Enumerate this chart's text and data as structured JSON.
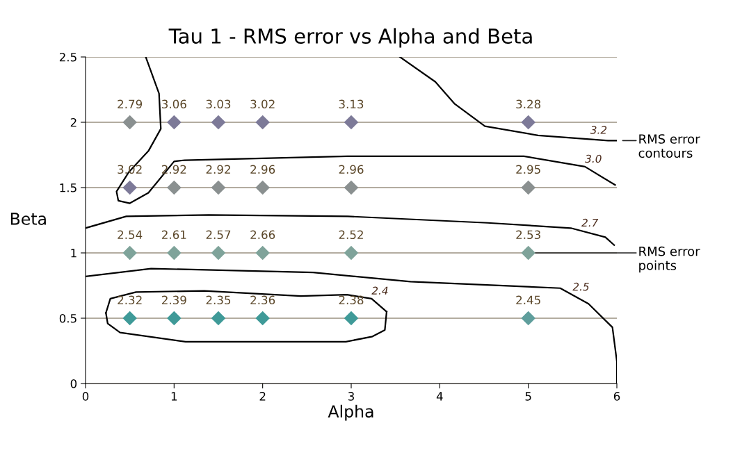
{
  "chart_data": {
    "type": "scatter",
    "title": "Tau 1 - RMS error vs Alpha and Beta",
    "xlabel": "Alpha",
    "ylabel": "Beta",
    "xlim": [
      0,
      6
    ],
    "ylim": [
      0,
      2.5
    ],
    "xticks": [
      0,
      1,
      2,
      3,
      4,
      5,
      6
    ],
    "yticks": [
      0,
      0.5,
      1,
      1.5,
      2,
      2.5
    ],
    "grid": "y",
    "series": [
      {
        "marker": "diamond",
        "x": [
          0.5,
          1,
          1.5,
          2,
          3,
          5,
          0.5,
          1,
          1.5,
          2,
          3,
          5,
          0.5,
          1,
          1.5,
          2,
          3,
          5,
          0.5,
          1,
          1.5,
          2,
          3,
          5
        ],
        "values": [
          2,
          2,
          2,
          2,
          2,
          2,
          1.5,
          1.5,
          1.5,
          1.5,
          1.5,
          1.5,
          1,
          1,
          1,
          1,
          1,
          1,
          0.5,
          0.5,
          0.5,
          0.5,
          0.5,
          0.5
        ],
        "colors": [
          "#8a9090",
          "#7d7a98",
          "#7d7a98",
          "#7d7a98",
          "#7d7a98",
          "#7d7a98",
          "#7d7a98",
          "#8a9090",
          "#8a9090",
          "#8a9090",
          "#8a9090",
          "#8a9090",
          "#7fa39a",
          "#7fa39a",
          "#7fa39a",
          "#7fa39a",
          "#7fa39a",
          "#7fa39a",
          "#3f9a98",
          "#3f9a98",
          "#3f9a98",
          "#3f9a98",
          "#3f9a98",
          "#5f9e9c"
        ]
      },
      {
        "type": "line",
        "color": "#000000",
        "x": [
          3.55,
          3.95,
          4.17,
          4.51,
          5.11,
          5.9,
          6
        ],
        "values": [
          2.5,
          2.31,
          2.14,
          1.97,
          1.9,
          1.86,
          1.86
        ]
      },
      {
        "type": "line",
        "color": "#000000",
        "x": [
          0.68,
          0.83,
          0.85,
          0.71,
          0.49,
          0.35,
          0.37,
          0.5,
          0.71,
          1.0,
          1.12,
          2.96,
          4.95,
          5.64,
          5.98
        ],
        "values": [
          2.5,
          2.22,
          1.95,
          1.78,
          1.62,
          1.47,
          1.4,
          1.38,
          1.46,
          1.7,
          1.71,
          1.74,
          1.74,
          1.66,
          1.52
        ]
      },
      {
        "type": "line",
        "color": "#000000",
        "x": [
          0,
          0.46,
          1.39,
          2.96,
          4.54,
          5.48,
          5.87,
          5.97
        ],
        "values": [
          1.19,
          1.28,
          1.29,
          1.28,
          1.23,
          1.19,
          1.12,
          1.06
        ]
      },
      {
        "type": "line",
        "color": "#000000",
        "x": [
          0,
          0.74,
          2.57,
          3.67,
          5.36,
          5.68,
          5.95,
          6,
          6
        ],
        "values": [
          0.82,
          0.88,
          0.85,
          0.78,
          0.73,
          0.61,
          0.43,
          0.17,
          0
        ]
      },
      {
        "type": "line",
        "color": "#000000",
        "x": [
          0.23,
          0.28,
          0.57,
          1.34,
          2.43,
          2.95,
          3.23,
          3.4
        ],
        "values": [
          0.54,
          0.65,
          0.7,
          0.71,
          0.67,
          0.68,
          0.65,
          0.55
        ]
      },
      {
        "type": "line",
        "color": "#000000",
        "x": [
          0.23,
          0.25,
          0.39,
          1.13,
          2.94,
          3.24,
          3.38,
          3.4
        ],
        "values": [
          0.54,
          0.46,
          0.39,
          0.32,
          0.32,
          0.36,
          0.41,
          0.55
        ]
      }
    ],
    "annotations": [
      {
        "text": "2.79",
        "x": 0.5,
        "y": 2
      },
      {
        "text": "3.06",
        "x": 1,
        "y": 2
      },
      {
        "text": "3.03",
        "x": 1.5,
        "y": 2
      },
      {
        "text": "3.02",
        "x": 2,
        "y": 2
      },
      {
        "text": "3.13",
        "x": 3,
        "y": 2
      },
      {
        "text": "3.28",
        "x": 5,
        "y": 2
      },
      {
        "text": "3.02",
        "x": 0.5,
        "y": 1.5
      },
      {
        "text": "2.92",
        "x": 1,
        "y": 1.5
      },
      {
        "text": "2.92",
        "x": 1.5,
        "y": 1.5
      },
      {
        "text": "2.96",
        "x": 2,
        "y": 1.5
      },
      {
        "text": "2.96",
        "x": 3,
        "y": 1.5
      },
      {
        "text": "2.95",
        "x": 5,
        "y": 1.5
      },
      {
        "text": "2.54",
        "x": 0.5,
        "y": 1
      },
      {
        "text": "2.61",
        "x": 1,
        "y": 1
      },
      {
        "text": "2.57",
        "x": 1.5,
        "y": 1
      },
      {
        "text": "2.66",
        "x": 2,
        "y": 1
      },
      {
        "text": "2.52",
        "x": 3,
        "y": 1
      },
      {
        "text": "2.53",
        "x": 5,
        "y": 1
      },
      {
        "text": "2.32",
        "x": 0.5,
        "y": 0.5
      },
      {
        "text": "2.39",
        "x": 1,
        "y": 0.5
      },
      {
        "text": "2.35",
        "x": 1.5,
        "y": 0.5
      },
      {
        "text": "2.36",
        "x": 2,
        "y": 0.5
      },
      {
        "text": "2.38",
        "x": 3,
        "y": 0.5
      },
      {
        "text": "2.45",
        "x": 5,
        "y": 0.5
      },
      {
        "text": "3.2",
        "x": 5.7,
        "y": 1.88
      },
      {
        "text": "3.0",
        "x": 5.64,
        "y": 1.66
      },
      {
        "text": "2.7",
        "x": 5.6,
        "y": 1.17
      },
      {
        "text": "2.5",
        "x": 5.5,
        "y": 0.68
      },
      {
        "text": "2.4",
        "x": 3.23,
        "y": 0.65
      },
      {
        "text": "RMS error\ncontours",
        "x": 6,
        "y": 1.86
      },
      {
        "text": "RMS error\npoints",
        "x": 5,
        "y": 1
      }
    ]
  }
}
